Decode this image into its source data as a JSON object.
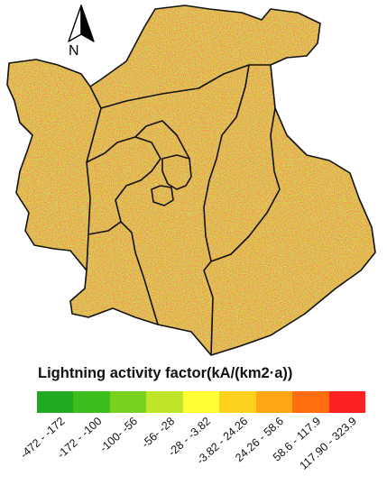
{
  "map": {
    "north_label": "N",
    "boundary_color": "#111111",
    "dominant_fill": "#d9d521"
  },
  "legend": {
    "title": "Lightning activity factor(kA/(km2·a))",
    "classes": [
      {
        "label": "-472 - -172",
        "color": "#1faa1f"
      },
      {
        "label": "-172 - -100",
        "color": "#3dbe1d"
      },
      {
        "label": "-100- -56",
        "color": "#77d21f"
      },
      {
        "label": "-56- -28",
        "color": "#bfe52a"
      },
      {
        "label": "-28 - -3.82",
        "color": "#ffff33"
      },
      {
        "label": "-3.82 - 24.26",
        "color": "#ffd11f"
      },
      {
        "label": "24.26 - 58.6",
        "color": "#ffa614"
      },
      {
        "label": "58.6 - 117.9",
        "color": "#ff6d0f"
      },
      {
        "label": "117.90 - 323.9",
        "color": "#ff2121"
      }
    ]
  }
}
